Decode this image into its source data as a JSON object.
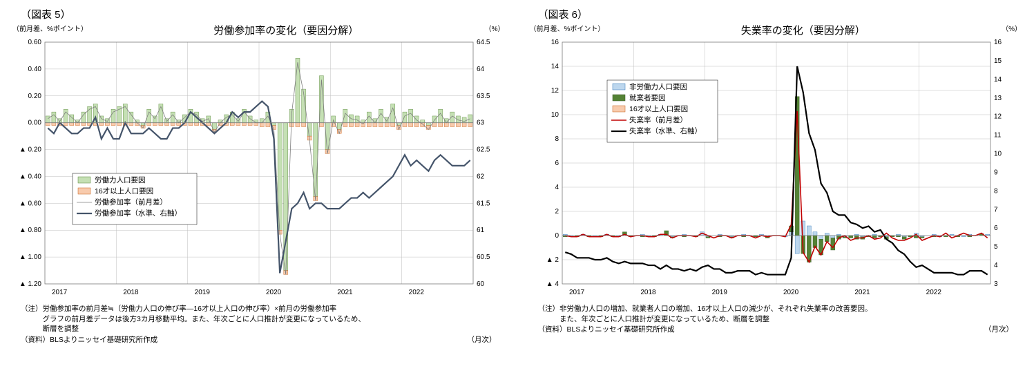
{
  "chart5": {
    "header": "（図表 5）",
    "title": "労働参加率の変化（要因分解）",
    "left_axis_label": "（前月差、%ポイント）",
    "right_axis_label": "（%）",
    "type": "combo_bar_line",
    "x_categories": [
      "2017",
      "2018",
      "2019",
      "2020",
      "2021",
      "2022"
    ],
    "left_ylim": [
      -1.2,
      0.6
    ],
    "left_ticks": [
      0.6,
      0.4,
      0.2,
      0.0,
      -0.2,
      -0.4,
      -0.6,
      -0.8,
      -1.0,
      -1.2
    ],
    "left_tick_labels": [
      "0.60",
      "0.40",
      "0.20",
      "0.00",
      "▲ 0.20",
      "▲ 0.40",
      "▲ 0.60",
      "▲ 0.80",
      "▲ 1.00",
      "▲ 1.20"
    ],
    "right_ylim": [
      60.0,
      64.5
    ],
    "right_ticks": [
      64.5,
      64.0,
      63.5,
      63.0,
      62.5,
      62.0,
      61.5,
      61.0,
      60.5,
      60.0
    ],
    "grid_color": "#bfbfbf",
    "background_color": "#ffffff",
    "legend": {
      "position": "inside-left-middle",
      "items": [
        {
          "label": "労働力人口要因",
          "type": "bar",
          "fill": "#c5e0b4",
          "stroke": "#548235"
        },
        {
          "label": "16才以上人口要因",
          "type": "bar",
          "fill": "#f8cbad",
          "stroke": "#c55a11"
        },
        {
          "label": "労働参加率（前月差）",
          "type": "line",
          "color": "#7f7f7f",
          "width": 0.8
        },
        {
          "label": "労働参加率（水準、右軸）",
          "type": "line",
          "color": "#44546a",
          "width": 2.2
        }
      ]
    },
    "series": {
      "labor_force_factor": {
        "color_fill": "#c5e0b4",
        "color_stroke": "#548235",
        "values": [
          0.05,
          0.08,
          0.03,
          0.1,
          0.06,
          0.02,
          0.08,
          0.12,
          0.14,
          0.05,
          0.03,
          0.1,
          0.12,
          0.14,
          0.08,
          0.02,
          -0.02,
          0.1,
          0.05,
          0.14,
          0.03,
          0.08,
          0.02,
          0.06,
          0.1,
          0.08,
          0.03,
          0.05,
          -0.05,
          0.02,
          0.06,
          0.08,
          0.03,
          0.1,
          0.05,
          0.02,
          0.03,
          0.08,
          -0.02,
          -0.8,
          -1.1,
          0.1,
          0.48,
          0.25,
          -0.1,
          -0.55,
          0.35,
          -0.2,
          0.05,
          -0.05,
          0.1,
          0.06,
          0.05,
          0.02,
          0.08,
          0.03,
          0.1,
          0.04,
          0.14,
          -0.02,
          0.08,
          0.1,
          0.05,
          0.02,
          -0.02,
          0.05,
          0.1,
          0.03,
          0.08,
          0.05,
          0.04,
          0.06
        ]
      },
      "pop16_factor": {
        "color_fill": "#f8cbad",
        "color_stroke": "#c55a11",
        "values": [
          -0.02,
          -0.02,
          -0.02,
          -0.02,
          -0.02,
          -0.02,
          -0.02,
          -0.02,
          -0.02,
          -0.02,
          -0.02,
          -0.02,
          -0.02,
          -0.02,
          -0.02,
          -0.02,
          -0.02,
          -0.02,
          -0.02,
          -0.02,
          -0.02,
          -0.02,
          -0.02,
          -0.02,
          -0.02,
          -0.02,
          -0.02,
          -0.02,
          -0.02,
          -0.02,
          -0.02,
          -0.02,
          -0.02,
          -0.02,
          -0.02,
          -0.02,
          -0.03,
          -0.03,
          -0.03,
          -0.03,
          -0.03,
          -0.03,
          -0.03,
          -0.03,
          -0.03,
          -0.03,
          -0.03,
          -0.03,
          -0.03,
          -0.03,
          -0.03,
          -0.03,
          -0.03,
          -0.03,
          -0.03,
          -0.03,
          -0.03,
          -0.03,
          -0.03,
          -0.03,
          -0.03,
          -0.03,
          -0.03,
          -0.03,
          -0.03,
          -0.03,
          -0.03,
          -0.03,
          -0.03,
          -0.03,
          -0.03,
          -0.03
        ]
      },
      "rate_mom": {
        "color": "#7f7f7f",
        "values": [
          0.03,
          0.06,
          0.01,
          0.08,
          0.04,
          0.0,
          0.06,
          0.1,
          0.12,
          0.03,
          0.01,
          0.08,
          0.1,
          0.12,
          0.06,
          0.0,
          -0.04,
          0.08,
          0.03,
          0.12,
          0.01,
          0.06,
          0.0,
          0.04,
          0.08,
          0.06,
          0.01,
          0.03,
          -0.07,
          0.0,
          0.04,
          0.06,
          0.01,
          0.08,
          0.03,
          0.0,
          0.0,
          0.05,
          -0.05,
          -0.83,
          -1.13,
          0.07,
          0.45,
          0.22,
          -0.13,
          -0.58,
          0.32,
          -0.23,
          0.02,
          -0.08,
          0.07,
          0.03,
          0.02,
          -0.01,
          0.05,
          0.0,
          0.07,
          0.01,
          0.11,
          -0.05,
          0.05,
          0.07,
          0.02,
          -0.01,
          -0.05,
          0.02,
          0.07,
          0.0,
          0.05,
          0.02,
          0.01,
          0.03
        ]
      },
      "rate_level": {
        "color": "#44546a",
        "values": [
          62.9,
          62.8,
          63.0,
          62.9,
          62.8,
          62.8,
          62.9,
          62.9,
          63.1,
          62.7,
          62.9,
          62.7,
          62.7,
          63.0,
          62.8,
          62.8,
          62.8,
          62.9,
          62.8,
          62.7,
          62.7,
          62.9,
          62.9,
          63.0,
          63.2,
          63.1,
          63.0,
          62.9,
          62.8,
          62.9,
          63.0,
          63.2,
          63.1,
          63.2,
          63.2,
          63.3,
          63.4,
          63.3,
          62.7,
          60.2,
          60.8,
          61.4,
          61.5,
          61.7,
          61.4,
          61.5,
          61.5,
          61.4,
          61.4,
          61.4,
          61.5,
          61.6,
          61.6,
          61.7,
          61.6,
          61.7,
          61.8,
          61.9,
          62.0,
          62.2,
          62.4,
          62.2,
          62.3,
          62.2,
          62.1,
          62.3,
          62.4,
          62.3,
          62.2,
          62.2,
          62.2,
          62.3
        ]
      }
    },
    "n_points": 72,
    "note_lines": [
      "（注）労働参加率の前月差≒（労働力人口の伸び率―16才以上人口の伸び率）×前月の労働参加率",
      "　　　グラフの前月差データは後方3カ月移動平均。また、年次ごとに人口推計が変更になっているため、",
      "　　　断層を調整"
    ],
    "source": "（資料）BLSよりニッセイ基礎研究所作成",
    "freq": "（月次）"
  },
  "chart6": {
    "header": "（図表 6）",
    "title": "失業率の変化（要因分解）",
    "left_axis_label": "（前月差、%ポイント）",
    "right_axis_label": "（%）",
    "type": "combo_bar_line",
    "x_categories": [
      "2017",
      "2018",
      "2019",
      "2020",
      "2021",
      "2022"
    ],
    "left_ylim": [
      -4,
      16
    ],
    "left_ticks": [
      16,
      14,
      12,
      10,
      8,
      6,
      4,
      2,
      0,
      -2,
      -4
    ],
    "left_tick_labels": [
      "16",
      "14",
      "12",
      "10",
      "8",
      "6",
      "4",
      "2",
      "0",
      "▲ 2",
      "▲ 4"
    ],
    "right_ylim": [
      3,
      16
    ],
    "right_ticks": [
      16,
      15,
      14,
      13,
      12,
      11,
      10,
      9,
      8,
      7,
      6,
      5,
      4,
      3
    ],
    "grid_color": "#bfbfbf",
    "background_color": "#ffffff",
    "legend": {
      "position": "inside-left-upper",
      "items": [
        {
          "label": "非労働力人口要因",
          "type": "bar",
          "fill": "#bdd7ee",
          "stroke": "#2e75b6"
        },
        {
          "label": "就業者要因",
          "type": "bar",
          "fill": "#548235",
          "stroke": "#385723"
        },
        {
          "label": "16才以上人口要因",
          "type": "bar",
          "fill": "#f8cbad",
          "stroke": "#c55a11"
        },
        {
          "label": "失業率（前月差）",
          "type": "line",
          "color": "#c00000",
          "width": 1.6
        },
        {
          "label": "失業率（水準、右軸）",
          "type": "line",
          "color": "#000000",
          "width": 2.2
        }
      ]
    },
    "series": {
      "nilf_factor": {
        "color_fill": "#bdd7ee",
        "color_stroke": "#2e75b6",
        "values": [
          0.1,
          -0.1,
          0.0,
          0.1,
          0.0,
          -0.1,
          0.0,
          0.1,
          0.0,
          -0.1,
          0.1,
          0.0,
          0.0,
          0.1,
          -0.1,
          0.0,
          0.1,
          0.0,
          -0.1,
          0.0,
          0.1,
          0.0,
          0.0,
          0.3,
          -0.1,
          0.0,
          0.1,
          0.0,
          -0.1,
          0.0,
          0.1,
          0.0,
          0.0,
          0.1,
          -0.1,
          0.0,
          0.0,
          -0.1,
          0.3,
          -1.5,
          1.2,
          0.8,
          0.3,
          -0.3,
          0.2,
          -0.2,
          0.1,
          -0.1,
          0.0,
          0.1,
          -0.1,
          0.0,
          0.1,
          0.0,
          -0.1,
          0.0,
          0.1,
          -0.1,
          0.0,
          0.2,
          -0.1,
          0.0,
          0.1,
          -0.1,
          0.0,
          0.1,
          0.0,
          -0.1,
          0.1,
          0.0,
          0.0,
          0.1
        ]
      },
      "employed_factor": {
        "color_fill": "#548235",
        "color_stroke": "#385723",
        "values": [
          -0.1,
          0.0,
          -0.1,
          0.0,
          -0.1,
          0.0,
          -0.1,
          0.0,
          -0.1,
          0.0,
          0.2,
          -0.1,
          0.0,
          -0.1,
          0.0,
          -0.1,
          0.0,
          0.4,
          -0.1,
          0.0,
          -0.1,
          0.0,
          -0.1,
          0.0,
          -0.1,
          0.0,
          -0.1,
          0.0,
          -0.1,
          0.0,
          -0.1,
          0.0,
          -0.1,
          0.0,
          -0.1,
          0.0,
          0.0,
          0.0,
          0.5,
          11.5,
          -1.5,
          -2.2,
          -1.0,
          -1.3,
          -0.5,
          -1.0,
          -0.3,
          -0.1,
          -0.2,
          -0.3,
          -0.2,
          -0.1,
          -0.2,
          -0.1,
          -0.2,
          -0.1,
          -0.1,
          -0.2,
          -0.1,
          -0.2,
          -0.1,
          0.0,
          -0.1,
          0.0,
          -0.1,
          0.0,
          -0.1,
          0.0,
          -0.1,
          0.0,
          0.15,
          0.0
        ]
      },
      "pop16_factor": {
        "color_fill": "#f8cbad",
        "color_stroke": "#c55a11",
        "values": [
          0.0,
          0.0,
          0.0,
          0.0,
          0.0,
          0.0,
          0.0,
          0.0,
          0.0,
          0.0,
          0.0,
          0.0,
          0.0,
          0.0,
          0.0,
          0.0,
          0.0,
          0.0,
          0.0,
          0.0,
          0.0,
          0.0,
          0.0,
          0.0,
          0.0,
          0.0,
          0.0,
          0.0,
          0.0,
          0.0,
          0.0,
          0.0,
          0.0,
          0.0,
          0.0,
          0.0,
          0.0,
          0.0,
          0.0,
          0.0,
          0.0,
          0.0,
          0.0,
          0.0,
          0.0,
          0.0,
          0.0,
          0.0,
          0.0,
          0.0,
          0.0,
          0.0,
          0.0,
          0.0,
          0.0,
          0.0,
          0.0,
          0.0,
          0.0,
          0.0,
          0.0,
          0.0,
          0.0,
          0.0,
          0.0,
          0.0,
          0.0,
          0.0,
          0.0,
          0.0,
          0.0,
          0.0
        ]
      },
      "rate_mom": {
        "color": "#c00000",
        "values": [
          0.0,
          -0.1,
          -0.1,
          0.1,
          -0.1,
          -0.1,
          -0.1,
          0.1,
          -0.1,
          -0.1,
          0.1,
          -0.1,
          0.0,
          0.0,
          -0.1,
          -0.1,
          0.1,
          0.1,
          -0.2,
          0.0,
          0.0,
          0.0,
          -0.1,
          0.2,
          0.0,
          -0.2,
          0.0,
          0.0,
          -0.2,
          0.0,
          0.0,
          0.0,
          -0.2,
          0.0,
          -0.1,
          0.0,
          0.0,
          -0.1,
          0.9,
          10.3,
          -1.4,
          -2.2,
          -0.9,
          -1.6,
          -0.5,
          -1.0,
          -0.2,
          0.0,
          -0.4,
          -0.2,
          -0.2,
          0.0,
          -0.3,
          -0.2,
          0.2,
          -0.2,
          -0.4,
          -0.4,
          -0.2,
          0.1,
          -0.4,
          -0.2,
          0.0,
          -0.1,
          0.2,
          -0.2,
          0.0,
          0.2,
          0.0,
          0.0,
          0.2,
          -0.2
        ]
      },
      "rate_level": {
        "color": "#000000",
        "values": [
          4.7,
          4.6,
          4.4,
          4.4,
          4.4,
          4.3,
          4.3,
          4.4,
          4.2,
          4.1,
          4.2,
          4.1,
          4.1,
          4.1,
          4.0,
          4.0,
          3.8,
          4.0,
          3.8,
          3.8,
          3.7,
          3.8,
          3.7,
          3.9,
          4.0,
          3.8,
          3.8,
          3.6,
          3.6,
          3.7,
          3.7,
          3.7,
          3.5,
          3.6,
          3.5,
          3.5,
          3.5,
          3.5,
          4.4,
          14.7,
          13.3,
          11.1,
          10.2,
          8.4,
          7.9,
          6.9,
          6.7,
          6.7,
          6.3,
          6.2,
          6.0,
          6.1,
          5.8,
          5.9,
          5.4,
          5.2,
          4.8,
          4.6,
          4.2,
          3.9,
          4.0,
          3.8,
          3.6,
          3.6,
          3.6,
          3.6,
          3.5,
          3.5,
          3.7,
          3.7,
          3.7,
          3.5
        ]
      }
    },
    "n_points": 72,
    "note_lines": [
      "（注）非労働力人口の増加、就業者人口の増加、16才以上人口の減少が、それぞれ失業率の改善要因。",
      "　　　また、年次ごとに人口推計が変更になっているため、断層を調整"
    ],
    "source": "（資料）BLSよりニッセイ基礎研究所作成",
    "freq": "（月次）"
  }
}
